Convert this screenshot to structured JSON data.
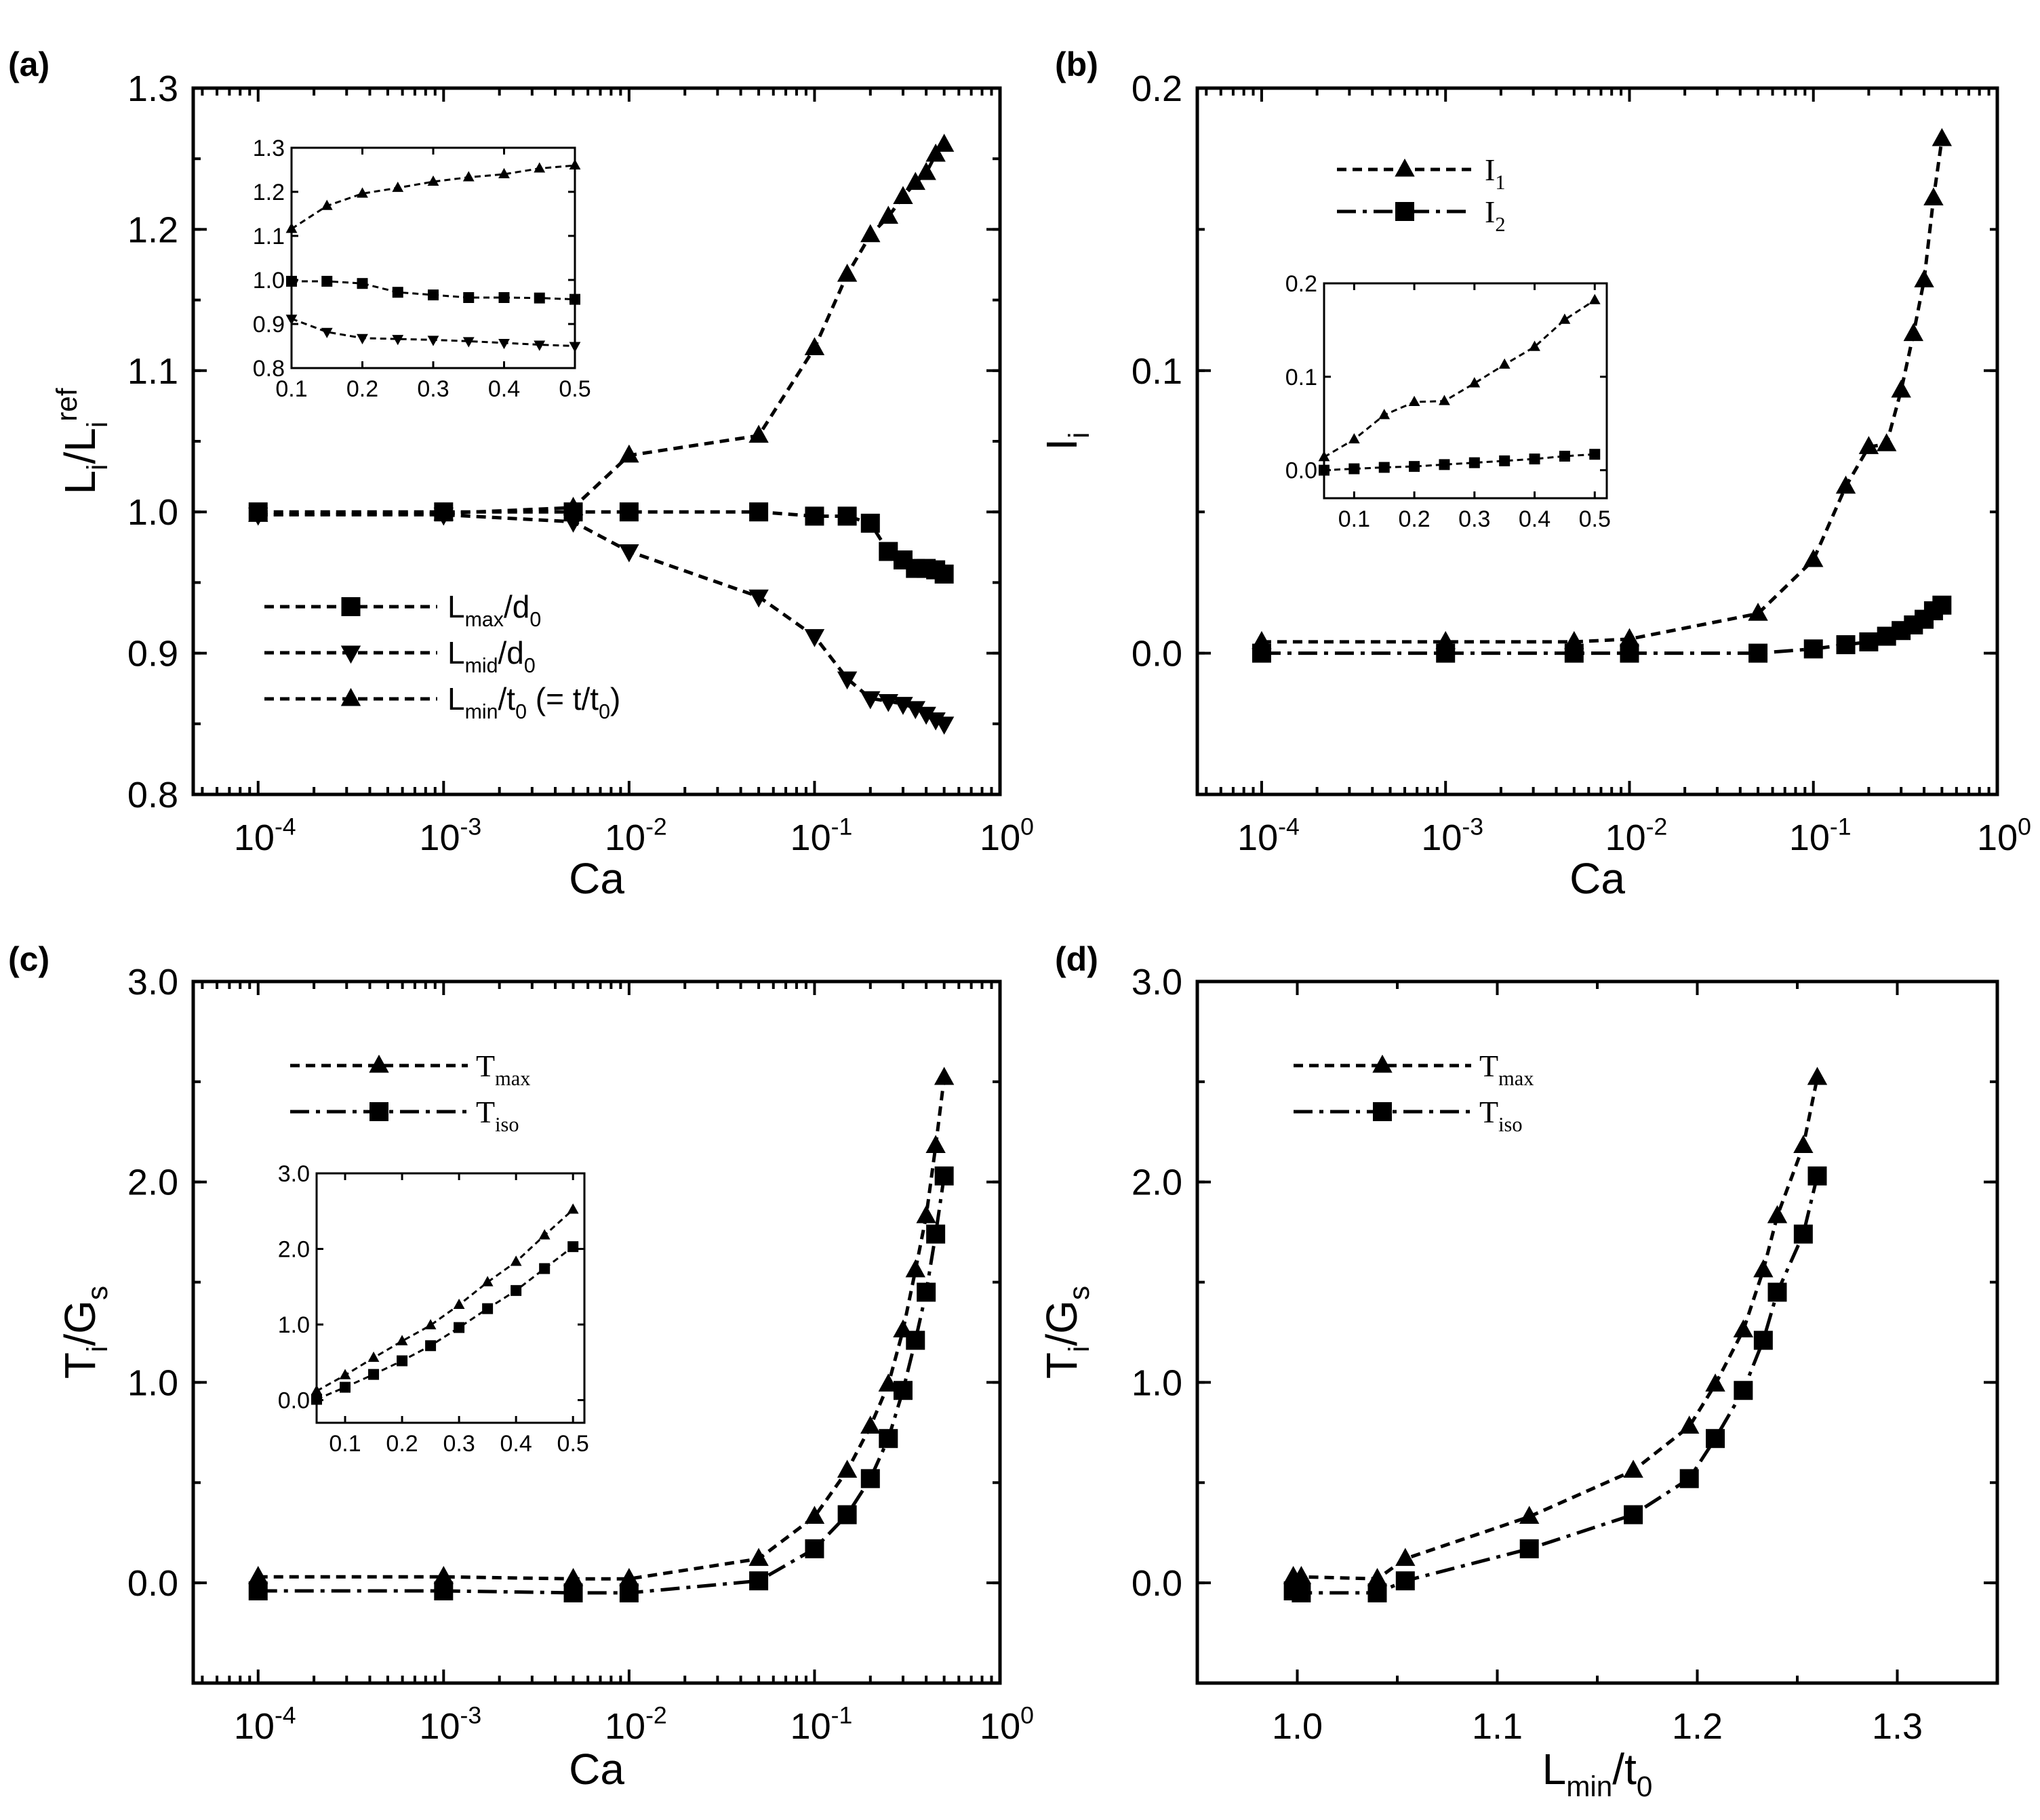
{
  "chart_data": [
    {
      "panel": "(a)",
      "type": "line",
      "xscale": "log",
      "xlabel": "Ca",
      "ylabel": {
        "base": "L",
        "sub": "i",
        "mid": "/L",
        "sub2": "i",
        "sup2": "ref"
      },
      "xlim": [
        -4.35,
        0
      ],
      "ylim": [
        0.8,
        1.3
      ],
      "xticks": [
        {
          "v": -4,
          "base": "10",
          "sup": "-4"
        },
        {
          "v": -3,
          "base": "10",
          "sup": "-3"
        },
        {
          "v": -2,
          "base": "10",
          "sup": "-2"
        },
        {
          "v": -1,
          "base": "10",
          "sup": "-1"
        },
        {
          "v": 0,
          "base": "10",
          "sup": "0"
        }
      ],
      "yticks": [
        {
          "v": 0.8,
          "label": "0.8"
        },
        {
          "v": 0.9,
          "label": "0.9"
        },
        {
          "v": 1.0,
          "label": "1.0"
        },
        {
          "v": 1.1,
          "label": "1.1"
        },
        {
          "v": 1.2,
          "label": "1.2"
        },
        {
          "v": 1.3,
          "label": "1.3"
        }
      ],
      "legend_position": "lower-left",
      "series": [
        {
          "name": "L_max/d_0",
          "label": {
            "base": "L",
            "sub": "max",
            "rest": "/d",
            "sub2": "0"
          },
          "marker": "square",
          "style": "dash",
          "x": [
            0.0001,
            0.001,
            0.005,
            0.01,
            0.05,
            0.1,
            0.15,
            0.2,
            0.25,
            0.3,
            0.35,
            0.4,
            0.45,
            0.5
          ],
          "y": [
            1.0,
            1.0,
            1.0,
            1.0,
            1.0,
            0.997,
            0.997,
            0.992,
            0.972,
            0.966,
            0.96,
            0.96,
            0.959,
            0.956
          ]
        },
        {
          "name": "L_mid/d_0",
          "label": {
            "base": "L",
            "sub": "mid",
            "rest": "/d",
            "sub2": "0"
          },
          "marker": "triangle-down",
          "style": "dash",
          "x": [
            0.0001,
            0.001,
            0.005,
            0.01,
            0.05,
            0.1,
            0.15,
            0.2,
            0.25,
            0.3,
            0.35,
            0.4,
            0.45,
            0.5
          ],
          "y": [
            0.998,
            0.998,
            0.993,
            0.972,
            0.94,
            0.912,
            0.882,
            0.868,
            0.866,
            0.864,
            0.861,
            0.857,
            0.853,
            0.85
          ]
        },
        {
          "name": "L_min/t_0 (= t/t_0)",
          "label": {
            "base": "L",
            "sub": "min",
            "rest": "/t",
            "sub2": "0",
            "rest2": " (= t/t",
            "sub3": "0",
            "rest3": ")"
          },
          "marker": "triangle-up",
          "style": "dash",
          "x": [
            0.0001,
            0.001,
            0.005,
            0.01,
            0.05,
            0.1,
            0.15,
            0.2,
            0.25,
            0.3,
            0.35,
            0.4,
            0.45,
            0.5
          ],
          "y": [
            0.998,
            0.999,
            1.003,
            1.04,
            1.054,
            1.116,
            1.168,
            1.196,
            1.209,
            1.223,
            1.233,
            1.24,
            1.253,
            1.26
          ]
        }
      ],
      "inset": {
        "xlim": [
          0.1,
          0.5
        ],
        "ylim": [
          0.8,
          1.3
        ],
        "xticks": [
          "0.1",
          "0.2",
          "0.3",
          "0.4",
          "0.5"
        ],
        "yticks": [
          "0.8",
          "0.9",
          "1.0",
          "1.1",
          "1.2",
          "1.3"
        ]
      }
    },
    {
      "panel": "(b)",
      "type": "line",
      "xscale": "log",
      "xlabel": "Ca",
      "ylabel": {
        "base": "I",
        "sub": "i"
      },
      "xlim": [
        -4.35,
        0
      ],
      "ylim": [
        -0.05,
        0.2
      ],
      "xticks": [
        {
          "v": -4,
          "base": "10",
          "sup": "-4"
        },
        {
          "v": -3,
          "base": "10",
          "sup": "-3"
        },
        {
          "v": -2,
          "base": "10",
          "sup": "-2"
        },
        {
          "v": -1,
          "base": "10",
          "sup": "-1"
        },
        {
          "v": 0,
          "base": "10",
          "sup": "0"
        }
      ],
      "yticks": [
        {
          "v": 0.0,
          "label": "0.0"
        },
        {
          "v": 0.1,
          "label": "0.1"
        },
        {
          "v": 0.2,
          "label": "0.2"
        }
      ],
      "legend_position": "top-left",
      "series": [
        {
          "name": "I_1",
          "label": {
            "base": "I",
            "sub": "1"
          },
          "marker": "triangle-up",
          "style": "dash",
          "x": [
            0.0001,
            0.001,
            0.005,
            0.01,
            0.05,
            0.1,
            0.15,
            0.2,
            0.25,
            0.3,
            0.35,
            0.4,
            0.45,
            0.5
          ],
          "y": [
            0.004,
            0.004,
            0.004,
            0.005,
            0.014,
            0.033,
            0.059,
            0.073,
            0.074,
            0.093,
            0.113,
            0.132,
            0.161,
            0.182
          ]
        },
        {
          "name": "I_2",
          "label": {
            "base": "I",
            "sub": "2"
          },
          "marker": "square",
          "style": "dashdot",
          "x": [
            0.0001,
            0.001,
            0.005,
            0.01,
            0.05,
            0.1,
            0.15,
            0.2,
            0.25,
            0.3,
            0.35,
            0.4,
            0.45,
            0.5
          ],
          "y": [
            0.0,
            0.0,
            0.0,
            0.0,
            0.0,
            0.0015,
            0.003,
            0.004,
            0.006,
            0.008,
            0.01,
            0.012,
            0.015,
            0.017
          ]
        }
      ],
      "inset": {
        "xlim": [
          0.05,
          0.52
        ],
        "ylim": [
          -0.03,
          0.2
        ],
        "xticks": [
          "0.1",
          "0.2",
          "0.3",
          "0.4",
          "0.5"
        ],
        "yticks": [
          "0.0",
          "0.1",
          "0.2"
        ]
      }
    },
    {
      "panel": "(c)",
      "type": "line",
      "xscale": "log",
      "xlabel": "Ca",
      "ylabel": {
        "base": "T",
        "sub": "i",
        "mid": "/G",
        "sub2": "s"
      },
      "xlim": [
        -4.35,
        0
      ],
      "ylim": [
        -0.5,
        3.0
      ],
      "xticks": [
        {
          "v": -4,
          "base": "10",
          "sup": "-4"
        },
        {
          "v": -3,
          "base": "10",
          "sup": "-3"
        },
        {
          "v": -2,
          "base": "10",
          "sup": "-2"
        },
        {
          "v": -1,
          "base": "10",
          "sup": "-1"
        },
        {
          "v": 0,
          "base": "10",
          "sup": "0"
        }
      ],
      "yticks": [
        {
          "v": 0.0,
          "label": "0.0"
        },
        {
          "v": 1.0,
          "label": "1.0"
        },
        {
          "v": 2.0,
          "label": "2.0"
        },
        {
          "v": 3.0,
          "label": "3.0"
        }
      ],
      "legend_position": "top-left",
      "series": [
        {
          "name": "T_max",
          "label": {
            "base": "T",
            "sub": "max"
          },
          "marker": "triangle-up",
          "style": "dash",
          "x": [
            0.0001,
            0.001,
            0.005,
            0.01,
            0.05,
            0.1,
            0.15,
            0.2,
            0.25,
            0.3,
            0.35,
            0.4,
            0.45,
            0.5
          ],
          "y": [
            0.03,
            0.03,
            0.02,
            0.02,
            0.12,
            0.33,
            0.56,
            0.78,
            0.99,
            1.26,
            1.56,
            1.83,
            2.18,
            2.52
          ]
        },
        {
          "name": "T_iso",
          "label": {
            "base": "T",
            "sub": "iso"
          },
          "marker": "square",
          "style": "dashdot",
          "x": [
            0.0001,
            0.001,
            0.005,
            0.01,
            0.05,
            0.1,
            0.15,
            0.2,
            0.25,
            0.3,
            0.35,
            0.4,
            0.45,
            0.5
          ],
          "y": [
            -0.04,
            -0.04,
            -0.05,
            -0.05,
            0.01,
            0.17,
            0.34,
            0.52,
            0.72,
            0.96,
            1.21,
            1.45,
            1.74,
            2.03
          ]
        }
      ],
      "inset": {
        "xlim": [
          0.05,
          0.52
        ],
        "ylim": [
          -0.3,
          3.0
        ],
        "xticks": [
          "0.1",
          "0.2",
          "0.3",
          "0.4",
          "0.5"
        ],
        "yticks": [
          "0.0",
          "1.0",
          "2.0",
          "3.0"
        ]
      }
    },
    {
      "panel": "(d)",
      "type": "line",
      "xscale": "linear",
      "xlabel": {
        "base": "L",
        "sub": "min",
        "mid": "/t",
        "sub2": "0"
      },
      "ylabel": {
        "base": "T",
        "sub": "i",
        "mid": "/G",
        "sub2": "s"
      },
      "xlim": [
        0.95,
        1.35
      ],
      "ylim": [
        -0.5,
        3.0
      ],
      "xticks": [
        {
          "v": 1.0,
          "label": "1.0"
        },
        {
          "v": 1.1,
          "label": "1.1"
        },
        {
          "v": 1.2,
          "label": "1.2"
        },
        {
          "v": 1.3,
          "label": "1.3"
        }
      ],
      "yticks": [
        {
          "v": 0.0,
          "label": "0.0"
        },
        {
          "v": 1.0,
          "label": "1.0"
        },
        {
          "v": 2.0,
          "label": "2.0"
        },
        {
          "v": 3.0,
          "label": "3.0"
        }
      ],
      "legend_position": "top-left",
      "series": [
        {
          "name": "T_max",
          "label": {
            "base": "T",
            "sub": "max"
          },
          "marker": "triangle-up",
          "style": "dash",
          "x": [
            0.998,
            1.002,
            1.04,
            1.054,
            1.116,
            1.168,
            1.196,
            1.209,
            1.223,
            1.233,
            1.24,
            1.253,
            1.26
          ],
          "y": [
            0.03,
            0.03,
            0.02,
            0.12,
            0.33,
            0.56,
            0.78,
            0.99,
            1.26,
            1.56,
            1.83,
            2.18,
            2.52
          ]
        },
        {
          "name": "T_iso",
          "label": {
            "base": "T",
            "sub": "iso"
          },
          "marker": "square",
          "style": "dashdot",
          "x": [
            0.998,
            1.002,
            1.04,
            1.054,
            1.116,
            1.168,
            1.196,
            1.209,
            1.223,
            1.233,
            1.24,
            1.253,
            1.26
          ],
          "y": [
            -0.04,
            -0.05,
            -0.05,
            0.01,
            0.17,
            0.34,
            0.52,
            0.72,
            0.96,
            1.21,
            1.45,
            1.74,
            2.03
          ]
        }
      ]
    }
  ]
}
